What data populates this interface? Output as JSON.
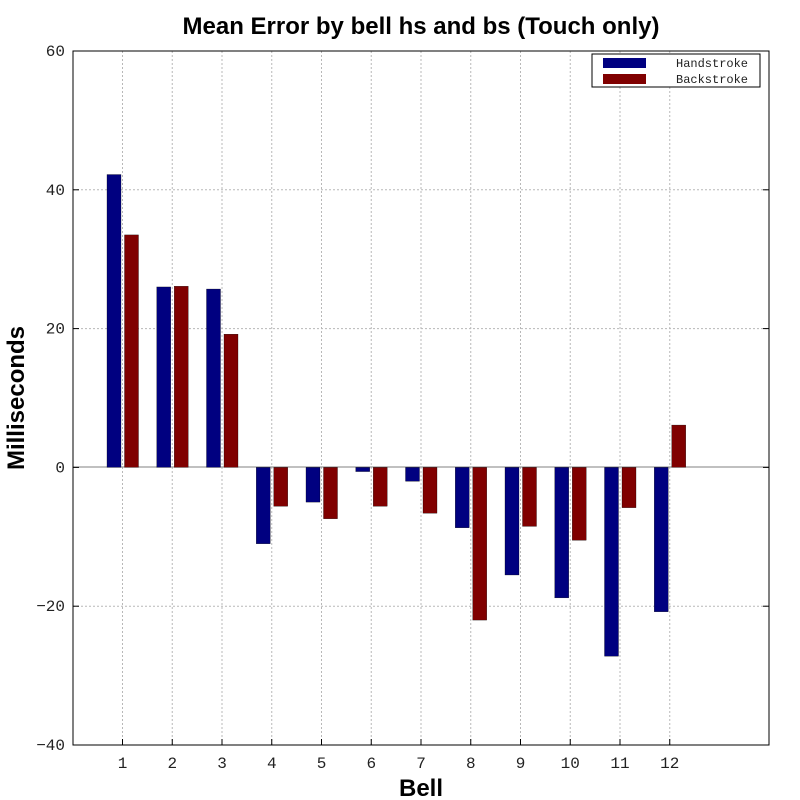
{
  "chart_data": {
    "type": "bar",
    "title": "Mean Error by bell hs and bs (Touch only)",
    "xlabel": "Bell",
    "ylabel": "Milliseconds",
    "categories": [
      "1",
      "2",
      "3",
      "4",
      "5",
      "6",
      "7",
      "8",
      "9",
      "10",
      "11",
      "12"
    ],
    "series": [
      {
        "name": "Handstroke",
        "color": "#000080",
        "values": [
          42.2,
          26.0,
          25.7,
          -11.0,
          -5.0,
          -0.6,
          -2.0,
          -8.7,
          -15.5,
          -18.8,
          -27.2,
          -20.8
        ]
      },
      {
        "name": "Backstroke",
        "color": "#800000",
        "values": [
          33.5,
          26.1,
          19.2,
          -5.6,
          -7.4,
          -5.6,
          -6.6,
          -22.0,
          -8.5,
          -10.5,
          -5.8,
          6.1
        ]
      }
    ],
    "ylim": [
      -40,
      60
    ],
    "yticks": [
      -40,
      -20,
      0,
      20,
      40,
      60
    ],
    "ytick_labels": [
      "−40",
      "−20",
      "0",
      "20",
      "40",
      "60"
    ],
    "grid": true,
    "legend_position": "top-right"
  }
}
